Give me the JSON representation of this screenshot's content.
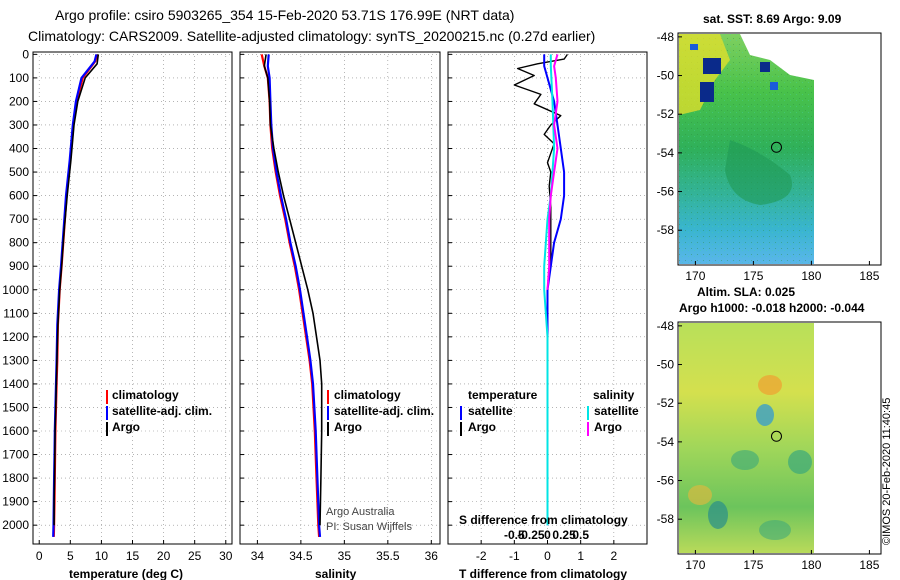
{
  "header": {
    "line1": "Argo profile: csiro 5903265_354 15-Feb-2020 53.71S 176.99E (NRT data)",
    "line2": "Climatology: CARS2009. Satellite-adjusted climatology: synTS_20200215.nc (0.27d earlier)"
  },
  "credit": {
    "owner": "Argo Australia",
    "pi": "PI: Susan Wijffels"
  },
  "timestamp": "©IMOS 20-Feb-2020 11:40:45",
  "colors": {
    "climatology": "#ff0000",
    "satellite": "#0000ff",
    "argo": "#000000",
    "satellite_s": "#00e5e5",
    "argo_s": "#ff00ff"
  },
  "chart_data": [
    {
      "type": "line",
      "id": "temperature",
      "xlabel": "temperature (deg C)",
      "xlim": [
        -1,
        31
      ],
      "xticks": [
        0,
        5,
        10,
        15,
        20,
        25,
        30
      ],
      "ylim": [
        2080,
        -10
      ],
      "yticks": [
        0,
        100,
        200,
        300,
        400,
        500,
        600,
        700,
        800,
        900,
        1000,
        1100,
        1200,
        1300,
        1400,
        1500,
        1600,
        1700,
        1800,
        1900,
        2000
      ],
      "legend": [
        "climatology",
        "satellite-adj. clim.",
        "Argo"
      ],
      "series": [
        {
          "name": "climatology",
          "x": [
            9.3,
            9.0,
            7.0,
            6.0,
            5.5,
            5.0,
            4.4,
            4.0,
            3.6,
            3.3,
            3.0,
            2.9,
            2.8,
            2.7,
            2.6,
            2.55,
            2.5,
            2.45,
            2.4,
            2.35
          ],
          "y": [
            0,
            30,
            100,
            200,
            300,
            450,
            600,
            750,
            900,
            1000,
            1150,
            1300,
            1400,
            1500,
            1600,
            1700,
            1800,
            1900,
            2000,
            2050
          ]
        },
        {
          "name": "satellite-adj. clim.",
          "x": [
            9.2,
            8.9,
            6.8,
            5.9,
            5.4,
            4.9,
            4.3,
            3.9,
            3.5,
            3.2,
            2.9,
            2.8,
            2.7,
            2.6,
            2.5,
            2.45,
            2.4,
            2.35,
            2.3,
            2.25
          ],
          "y": [
            0,
            30,
            100,
            200,
            300,
            450,
            600,
            750,
            900,
            1000,
            1150,
            1300,
            1400,
            1500,
            1600,
            1700,
            1800,
            1900,
            2000,
            2050
          ]
        },
        {
          "name": "Argo",
          "x": [
            9.5,
            9.3,
            7.4,
            6.2,
            5.6,
            5.1,
            4.5,
            4.0,
            3.6,
            3.3,
            3.0,
            2.85,
            2.75,
            2.65,
            2.55,
            2.5,
            2.45,
            2.4,
            2.4
          ],
          "y": [
            0,
            40,
            100,
            200,
            300,
            450,
            600,
            750,
            900,
            1000,
            1150,
            1300,
            1400,
            1500,
            1600,
            1700,
            1800,
            1900,
            2000
          ]
        }
      ]
    },
    {
      "type": "line",
      "id": "salinity",
      "xlabel": "salinity",
      "xlim": [
        33.8,
        36.1
      ],
      "xticks": [
        34,
        34.5,
        35,
        35.5,
        36
      ],
      "ylim": [
        2080,
        -10
      ],
      "legend": [
        "climatology",
        "satellite-adj. clim.",
        "Argo"
      ],
      "series": [
        {
          "name": "climatology",
          "x": [
            34.05,
            34.08,
            34.12,
            34.14,
            34.15,
            34.17,
            34.21,
            34.26,
            34.32,
            34.37,
            34.43,
            34.48,
            34.52,
            34.56,
            34.6,
            34.63,
            34.66,
            34.68,
            34.7,
            34.71
          ],
          "y": [
            0,
            50,
            100,
            200,
            300,
            400,
            500,
            600,
            700,
            800,
            900,
            1000,
            1100,
            1200,
            1300,
            1400,
            1600,
            1800,
            2000,
            2050
          ]
        },
        {
          "name": "satellite-adj. clim.",
          "x": [
            34.13,
            34.12,
            34.14,
            34.15,
            34.16,
            34.18,
            34.22,
            34.27,
            34.33,
            34.38,
            34.44,
            34.49,
            34.53,
            34.57,
            34.61,
            34.64,
            34.67,
            34.69,
            34.71,
            34.72
          ],
          "y": [
            0,
            50,
            100,
            200,
            300,
            400,
            500,
            600,
            700,
            800,
            900,
            1000,
            1100,
            1200,
            1300,
            1400,
            1600,
            1800,
            2000,
            2050
          ]
        },
        {
          "name": "Argo",
          "x": [
            34.1,
            34.08,
            34.12,
            34.14,
            34.15,
            34.19,
            34.24,
            34.3,
            34.37,
            34.44,
            34.51,
            34.58,
            34.64,
            34.68,
            34.72,
            34.74,
            34.74,
            34.73,
            34.72
          ],
          "y": [
            0,
            50,
            100,
            200,
            300,
            400,
            500,
            600,
            700,
            800,
            900,
            1000,
            1100,
            1200,
            1300,
            1400,
            1600,
            1800,
            2000
          ]
        }
      ]
    },
    {
      "type": "line",
      "id": "difference",
      "xlabel": "T difference from climatology",
      "x2label": "S difference from climatology",
      "xlim": [
        -3,
        3
      ],
      "xticks": [
        -2,
        -1,
        0,
        1,
        2
      ],
      "x2ticks": [
        "-0.5",
        "-0.25",
        "0",
        "0.25",
        "0.5"
      ],
      "ylim": [
        2080,
        -10
      ],
      "legend_left_title": "temperature",
      "legend_right_title": "salinity",
      "legend_items": [
        "satellite",
        "Argo",
        "satellite",
        "Argo"
      ],
      "series": [
        {
          "name": "T Argo - clim",
          "x": [
            0.6,
            0.5,
            -0.3,
            -0.9,
            -0.4,
            -1.0,
            -0.2,
            -0.4,
            0.4,
            0.1,
            -0.1,
            0.2,
            0.1,
            0.0,
            0.1,
            0.05,
            0.1,
            0.1,
            0.1
          ],
          "y": [
            0,
            20,
            40,
            60,
            90,
            130,
            170,
            210,
            260,
            300,
            340,
            380,
            420,
            460,
            500,
            560,
            650,
            700,
            900
          ]
        },
        {
          "name": "T satellite - clim",
          "x": [
            -0.1,
            -0.1,
            0.0,
            0.2,
            0.3,
            0.4,
            0.5,
            0.5,
            0.4,
            0.2,
            0.0,
            0.0,
            0.0,
            0.0,
            0.0
          ],
          "y": [
            0,
            50,
            100,
            200,
            300,
            400,
            500,
            600,
            700,
            800,
            1000,
            1200,
            1500,
            1800,
            2000
          ]
        },
        {
          "name": "S satellite - clim",
          "x": [
            0.1,
            0.1,
            0.15,
            0.2,
            0.1,
            0.0,
            -0.1,
            -0.1,
            0.0,
            0.0,
            0.0,
            0.0
          ],
          "y": [
            0,
            50,
            200,
            400,
            600,
            700,
            900,
            1000,
            1200,
            1500,
            1800,
            2000
          ]
        },
        {
          "name": "S Argo - clim",
          "x": [
            0.3,
            0.2,
            0.25,
            0.3,
            0.2,
            0.3,
            0.2,
            0.1,
            0.05,
            0.05,
            0.05,
            0.0
          ],
          "y": [
            0,
            50,
            100,
            200,
            300,
            400,
            500,
            600,
            700,
            800,
            900,
            1000
          ]
        }
      ]
    },
    {
      "type": "heatmap",
      "id": "sst-map",
      "title": "sat. SST: 8.69 Argo: 9.09",
      "xlim": [
        168.5,
        186
      ],
      "xticks": [
        170,
        175,
        180,
        185
      ],
      "ylim": [
        -59.8,
        -47.8
      ],
      "yticks": [
        -48,
        -50,
        -52,
        -54,
        -56,
        -58
      ],
      "marker": {
        "lon": 176.99,
        "lat": -53.71
      }
    },
    {
      "type": "heatmap",
      "id": "sla-map",
      "title": "Altim. SLA: 0.025",
      "subtitle": "Argo h1000: -0.018 h2000: -0.044",
      "xlim": [
        168.5,
        186
      ],
      "xticks": [
        170,
        175,
        180,
        185
      ],
      "ylim": [
        -59.8,
        -47.8
      ],
      "yticks": [
        -48,
        -50,
        -52,
        -54,
        -56,
        -58
      ],
      "marker": {
        "lon": 176.99,
        "lat": -53.71
      }
    }
  ]
}
